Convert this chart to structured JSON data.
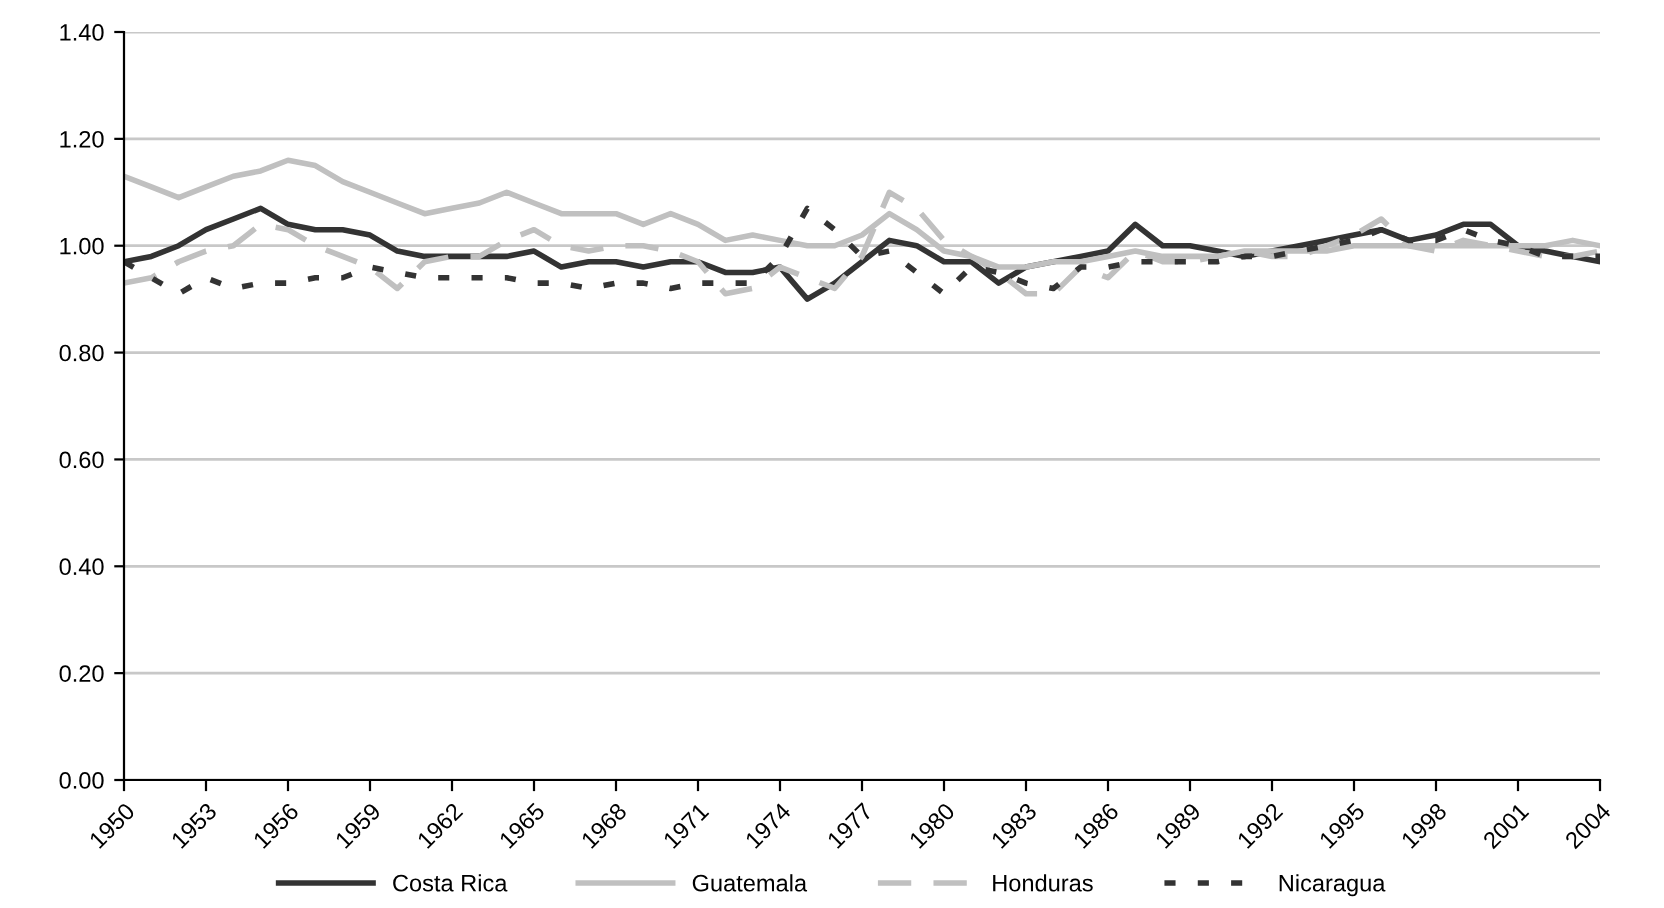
{
  "chart_data": {
    "type": "line",
    "x": [
      1950,
      1951,
      1952,
      1953,
      1954,
      1955,
      1956,
      1957,
      1958,
      1959,
      1960,
      1961,
      1962,
      1963,
      1964,
      1965,
      1966,
      1967,
      1968,
      1969,
      1970,
      1971,
      1972,
      1973,
      1974,
      1975,
      1976,
      1977,
      1978,
      1979,
      1980,
      1981,
      1982,
      1983,
      1984,
      1985,
      1986,
      1987,
      1988,
      1989,
      1990,
      1991,
      1992,
      1993,
      1994,
      1995,
      1996,
      1997,
      1998,
      1999,
      2000,
      2001,
      2002,
      2003,
      2004
    ],
    "series": [
      {
        "name": "Costa Rica",
        "color": "#333333",
        "line_style": "solid",
        "values": [
          0.97,
          0.98,
          1.0,
          1.03,
          1.05,
          1.07,
          1.04,
          1.03,
          1.03,
          1.02,
          0.99,
          0.98,
          0.98,
          0.98,
          0.98,
          0.99,
          0.96,
          0.97,
          0.97,
          0.96,
          0.97,
          0.97,
          0.95,
          0.95,
          0.96,
          0.9,
          0.93,
          0.97,
          1.01,
          1.0,
          0.97,
          0.97,
          0.93,
          0.96,
          0.97,
          0.98,
          0.99,
          1.04,
          1.0,
          1.0,
          0.99,
          0.98,
          0.99,
          1.0,
          1.01,
          1.02,
          1.03,
          1.01,
          1.02,
          1.04,
          1.04,
          1.0,
          0.99,
          0.98,
          0.97
        ]
      },
      {
        "name": "Guatemala",
        "color": "#c0c0c0",
        "line_style": "solid",
        "values": [
          1.13,
          1.11,
          1.09,
          1.11,
          1.13,
          1.14,
          1.16,
          1.15,
          1.12,
          1.1,
          1.08,
          1.06,
          1.07,
          1.08,
          1.1,
          1.08,
          1.06,
          1.06,
          1.06,
          1.04,
          1.06,
          1.04,
          1.01,
          1.02,
          1.01,
          1.0,
          1.0,
          1.02,
          1.06,
          1.03,
          0.99,
          0.98,
          0.96,
          0.96,
          0.97,
          0.97,
          0.98,
          0.99,
          0.98,
          0.98,
          0.98,
          0.99,
          0.99,
          0.99,
          0.99,
          1.0,
          1.0,
          1.0,
          1.0,
          1.0,
          1.0,
          1.0,
          1.0,
          1.01,
          1.0
        ]
      },
      {
        "name": "Honduras",
        "color": "#c0c0c0",
        "line_style": "dashed",
        "values": [
          0.93,
          0.94,
          0.97,
          0.99,
          1.0,
          1.04,
          1.03,
          1.0,
          0.98,
          0.96,
          0.92,
          0.97,
          0.98,
          0.98,
          1.01,
          1.03,
          1.0,
          0.99,
          1.0,
          1.0,
          0.99,
          0.97,
          0.91,
          0.92,
          0.96,
          0.94,
          0.92,
          0.98,
          1.1,
          1.07,
          1.01,
          0.98,
          0.95,
          0.91,
          0.91,
          0.96,
          0.94,
          0.99,
          0.97,
          0.97,
          0.98,
          0.99,
          0.98,
          0.98,
          1.0,
          1.02,
          1.05,
          1.0,
          0.99,
          1.01,
          1.0,
          0.99,
          0.98,
          0.98,
          0.99
        ]
      },
      {
        "name": "Nicaragua",
        "color": "#333333",
        "line_style": "dotted",
        "values": [
          0.97,
          0.94,
          0.91,
          0.94,
          0.92,
          0.93,
          0.93,
          0.94,
          0.94,
          0.96,
          0.95,
          0.94,
          0.94,
          0.94,
          0.94,
          0.93,
          0.93,
          0.92,
          0.93,
          0.93,
          0.92,
          0.93,
          0.93,
          0.93,
          0.98,
          1.07,
          1.03,
          0.98,
          0.99,
          0.95,
          0.91,
          0.96,
          0.95,
          0.93,
          0.92,
          0.96,
          0.96,
          0.97,
          0.97,
          0.97,
          0.97,
          0.98,
          0.98,
          0.99,
          1.0,
          1.01,
          1.03,
          1.01,
          1.01,
          1.03,
          1.01,
          1.0,
          0.98,
          0.98,
          0.98
        ]
      }
    ],
    "xlim": [
      1950,
      2004
    ],
    "xticks": [
      1950,
      1953,
      1956,
      1959,
      1962,
      1965,
      1968,
      1971,
      1974,
      1977,
      1980,
      1983,
      1986,
      1989,
      1992,
      1995,
      1998,
      2001,
      2004
    ],
    "ylim": [
      0,
      1.4
    ],
    "yticks": [
      {
        "value": 0,
        "label": "0.00"
      },
      {
        "value": 0.2,
        "label": "0.20"
      },
      {
        "value": 0.4,
        "label": "0.40"
      },
      {
        "value": 0.6,
        "label": "0.60"
      },
      {
        "value": 0.8,
        "label": "0.80"
      },
      {
        "value": 1.0,
        "label": "1.00"
      },
      {
        "value": 1.2,
        "label": "1.20"
      },
      {
        "value": 1.4,
        "label": "1.40"
      }
    ],
    "grid": "y",
    "legend": "bottom",
    "marker": "none"
  }
}
